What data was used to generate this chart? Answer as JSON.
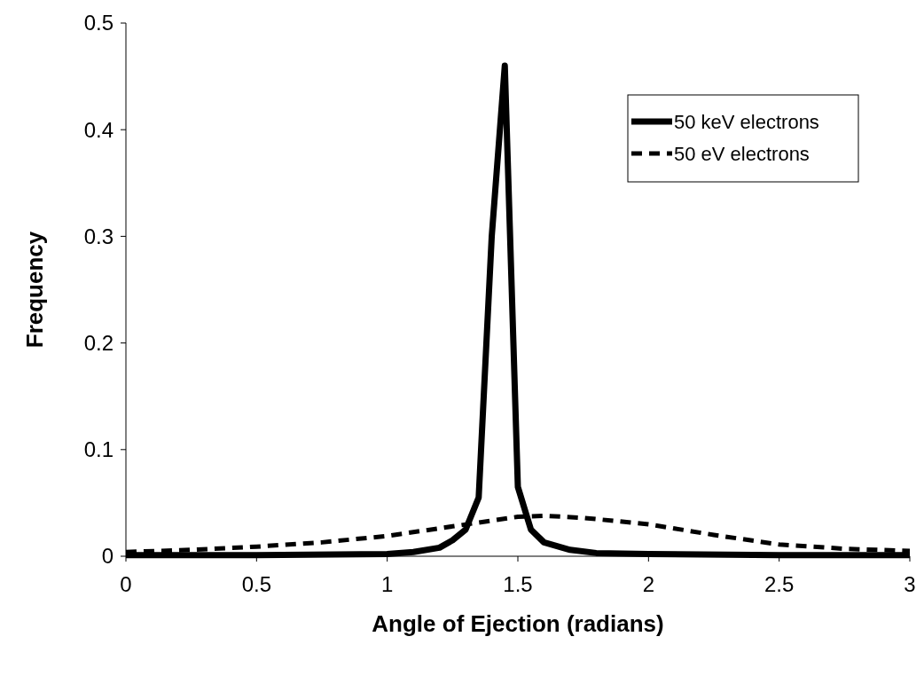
{
  "chart_data": {
    "type": "line",
    "xlabel": "Angle of Ejection (radians)",
    "ylabel": "Frequency",
    "xlim": [
      0,
      3
    ],
    "xticks": [
      0,
      0.5,
      1,
      1.5,
      2,
      2.5,
      3
    ],
    "ylim": [
      0,
      0.5
    ],
    "yticks": [
      0,
      0.1,
      0.2,
      0.3,
      0.4,
      0.5
    ],
    "grid": false,
    "legend": "top right",
    "marker": "none",
    "series": [
      {
        "name": "50 keV electrons",
        "color": "#000000",
        "line_style": "solid",
        "x": [
          0,
          0.5,
          1,
          1.1,
          1.2,
          1.25,
          1.3,
          1.35,
          1.4,
          1.45,
          1.5,
          1.55,
          1.6,
          1.7,
          1.8,
          2,
          2.5,
          3
        ],
        "values": [
          0.001,
          0.001,
          0.002,
          0.004,
          0.008,
          0.015,
          0.025,
          0.055,
          0.3,
          0.46,
          0.065,
          0.025,
          0.013,
          0.006,
          0.003,
          0.002,
          0.001,
          0.001
        ]
      },
      {
        "name": "50 eV electrons",
        "color": "#000000",
        "line_style": "dashed",
        "x": [
          0,
          0.25,
          0.5,
          0.75,
          1,
          1.25,
          1.5,
          1.6,
          1.75,
          2,
          2.25,
          2.5,
          2.75,
          3
        ],
        "values": [
          0.004,
          0.006,
          0.009,
          0.013,
          0.019,
          0.028,
          0.037,
          0.038,
          0.036,
          0.03,
          0.02,
          0.011,
          0.007,
          0.005
        ]
      }
    ]
  }
}
